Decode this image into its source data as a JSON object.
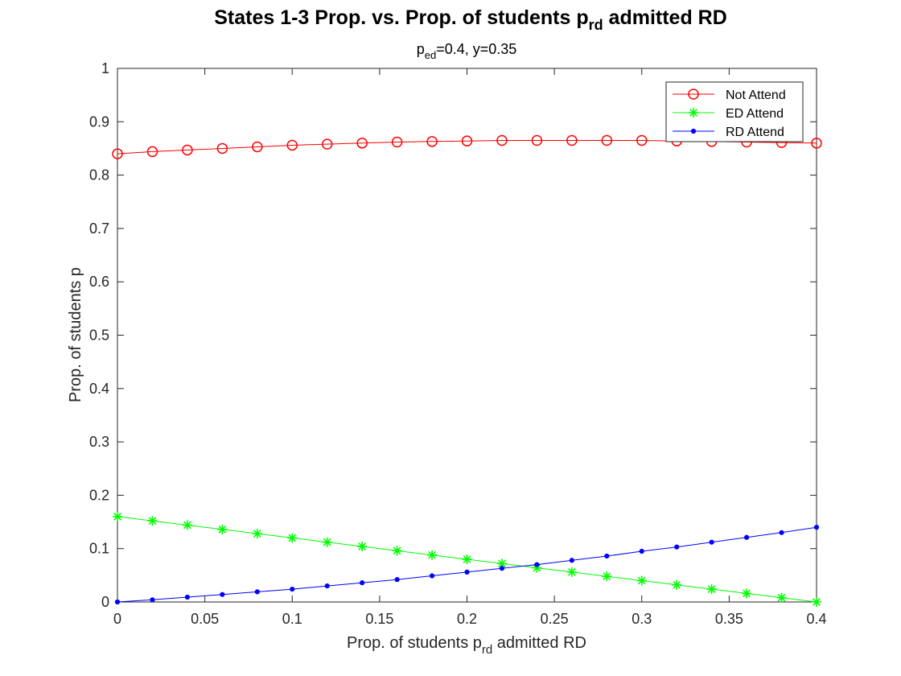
{
  "chart_data": {
    "type": "line",
    "title": {
      "prefix": "States 1-3 Prop. vs. Prop. of students p",
      "sub": "rd",
      "suffix": " admitted RD"
    },
    "subtitle": {
      "prefix": "p",
      "sub": "ed",
      "suffix": "=0.4, y=0.35"
    },
    "xlabel": {
      "prefix": "Prop. of students p",
      "sub": "rd",
      "suffix": " admitted RD"
    },
    "ylabel": "Prop. of students p",
    "xlim": [
      0,
      0.4
    ],
    "ylim": [
      0,
      1
    ],
    "x_ticks": [
      "0",
      "0.05",
      "0.1",
      "0.15",
      "0.2",
      "0.25",
      "0.3",
      "0.35",
      "0.4"
    ],
    "y_ticks": [
      "0",
      "0.1",
      "0.2",
      "0.3",
      "0.4",
      "0.5",
      "0.6",
      "0.7",
      "0.8",
      "0.9",
      "1"
    ],
    "grid": false,
    "legend_position": "top-right",
    "x": [
      0,
      0.02,
      0.04,
      0.06,
      0.08,
      0.1,
      0.12,
      0.14,
      0.16,
      0.18,
      0.2,
      0.22,
      0.24,
      0.26,
      0.28,
      0.3,
      0.32,
      0.34,
      0.36,
      0.38,
      0.4
    ],
    "series": [
      {
        "name": "Not Attend",
        "color": "#ff0000",
        "marker": "circle",
        "values": [
          0.84,
          0.844,
          0.847,
          0.85,
          0.853,
          0.856,
          0.858,
          0.86,
          0.862,
          0.863,
          0.864,
          0.865,
          0.865,
          0.865,
          0.865,
          0.865,
          0.864,
          0.863,
          0.862,
          0.861,
          0.86
        ]
      },
      {
        "name": "ED Attend",
        "color": "#00ff00",
        "marker": "asterisk",
        "values": [
          0.16,
          0.152,
          0.144,
          0.136,
          0.128,
          0.12,
          0.112,
          0.104,
          0.096,
          0.088,
          0.08,
          0.072,
          0.064,
          0.056,
          0.048,
          0.04,
          0.032,
          0.024,
          0.016,
          0.008,
          0.0
        ]
      },
      {
        "name": "RD Attend",
        "color": "#0000ff",
        "marker": "dot",
        "values": [
          0.0,
          0.004,
          0.009,
          0.014,
          0.019,
          0.024,
          0.03,
          0.036,
          0.042,
          0.049,
          0.056,
          0.063,
          0.07,
          0.078,
          0.086,
          0.095,
          0.103,
          0.112,
          0.121,
          0.13,
          0.14
        ]
      }
    ]
  }
}
